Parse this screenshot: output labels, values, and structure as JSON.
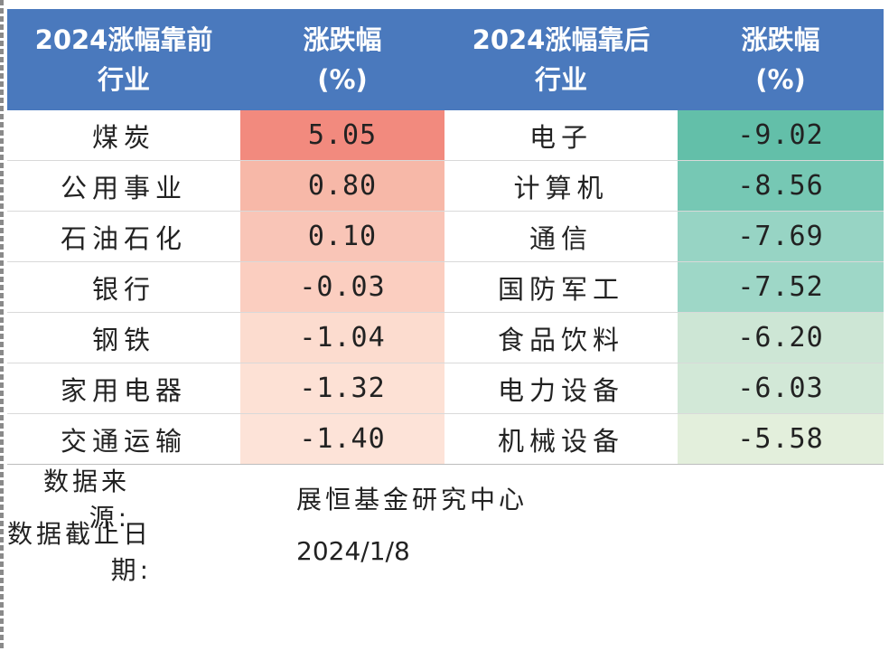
{
  "header": {
    "col1": "2024涨幅靠前\n行业",
    "col2": "涨跌幅\n(%)",
    "col3": "2024涨幅靠后\n行业",
    "col4": "涨跌幅\n(%)"
  },
  "rows": [
    {
      "top_industry": "煤炭",
      "top_change": "5.05",
      "bottom_industry": "电子",
      "bottom_change": "-9.02"
    },
    {
      "top_industry": "公用事业",
      "top_change": "0.80",
      "bottom_industry": "计算机",
      "bottom_change": "-8.56"
    },
    {
      "top_industry": "石油石化",
      "top_change": "0.10",
      "bottom_industry": "通信",
      "bottom_change": "-7.69"
    },
    {
      "top_industry": "银行",
      "top_change": "-0.03",
      "bottom_industry": "国防军工",
      "bottom_change": "-7.52"
    },
    {
      "top_industry": "钢铁",
      "top_change": "-1.04",
      "bottom_industry": "食品饮料",
      "bottom_change": "-6.20"
    },
    {
      "top_industry": "家用电器",
      "top_change": "-1.32",
      "bottom_industry": "电力设备",
      "bottom_change": "-6.03"
    },
    {
      "top_industry": "交通运输",
      "top_change": "-1.40",
      "bottom_industry": "机械设备",
      "bottom_change": "-5.58"
    }
  ],
  "colors": {
    "header_bg": "#4a79bd",
    "top_change_fills": [
      "#f28a7e",
      "#f7b8a8",
      "#f9c5b7",
      "#fbcec0",
      "#fcdccf",
      "#fde1d5",
      "#fde3d8"
    ],
    "bottom_change_fills": [
      "#63bfa9",
      "#76c8b4",
      "#97d4c4",
      "#9ed7c7",
      "#cde6d5",
      "#d2e8d7",
      "#e3efdc"
    ]
  },
  "footer": {
    "source_label": "数据来源:",
    "source_value": "展恒基金研究中心",
    "date_label": "数据截止日期:",
    "date_value": "2024/1/8"
  }
}
